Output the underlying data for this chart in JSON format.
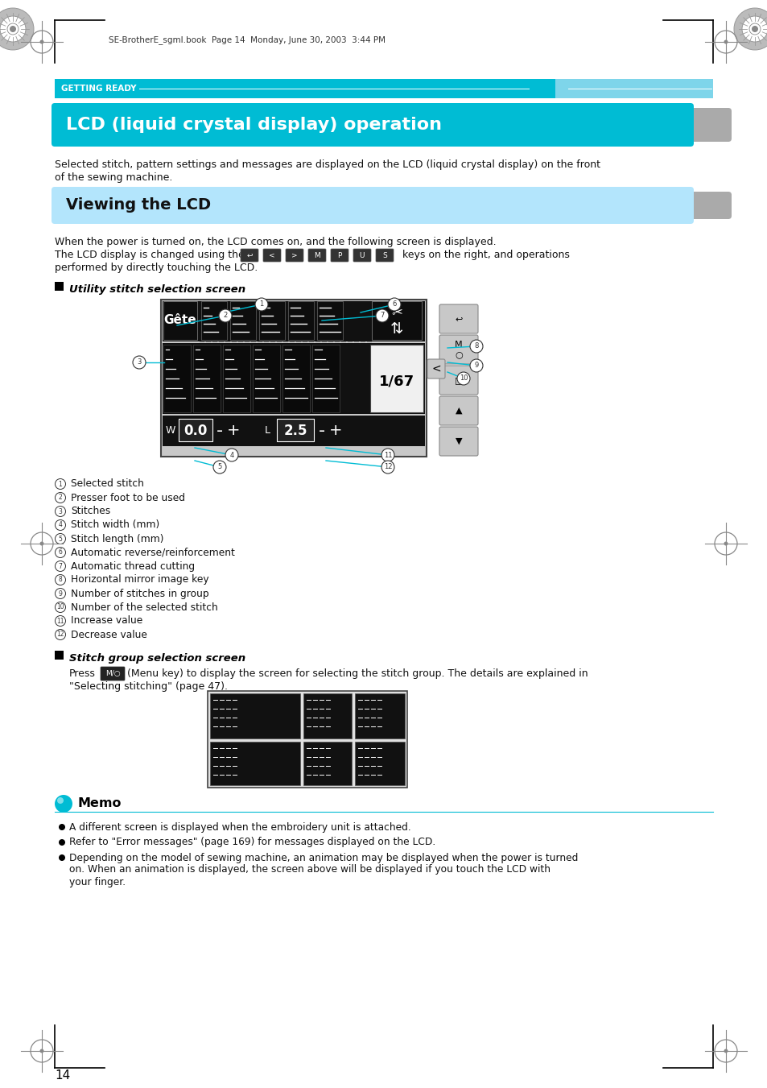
{
  "page_bg": "#ffffff",
  "header_bar_color": "#00bcd4",
  "getting_ready_text": "GETTING READY",
  "main_title": "LCD (liquid crystal display) operation",
  "subtitle_bar_color": "#b3e5fc",
  "subtitle_text": "Viewing the LCD",
  "body_text_color": "#111111",
  "callout_line_color": "#00bcd4",
  "para1a": "Selected stitch, pattern settings and messages are displayed on the LCD (liquid crystal display) on the front",
  "para1b": "of the sewing machine.",
  "para2a": "When the power is turned on, the LCD comes on, and the following screen is displayed.",
  "para2b": "The LCD display is changed using the",
  "para2c": "keys on the right, and operations",
  "para2d": "performed by directly touching the LCD.",
  "utility_title": "Utility stitch selection screen",
  "numbered_items": [
    "Selected stitch",
    "Presser foot to be used",
    "Stitches",
    "Stitch width (mm)",
    "Stitch length (mm)",
    "Automatic reverse/reinforcement",
    "Automatic thread cutting",
    "Horizontal mirror image key",
    "Number of stitches in group",
    "Number of the selected stitch",
    "Increase value",
    "Decrease value"
  ],
  "stitch_group_title": "Stitch group selection screen",
  "stitch_group_para1": "(Menu key) to display the screen for selecting the stitch group. The details are explained in",
  "stitch_group_para2": "\"Selecting stitching\" (page 47).",
  "memo_title": "Memo",
  "memo_line1": "A different screen is displayed when the embroidery unit is attached.",
  "memo_line2": "Refer to \"Error messages\" (page 169) for messages displayed on the LCD.",
  "memo_line3a": "Depending on the model of sewing machine, an animation may be displayed when the power is turned",
  "memo_line3b": "on. When an animation is displayed, the screen above will be displayed if you touch the LCD with",
  "memo_line3c": "your finger.",
  "page_number": "14",
  "file_info": "SE-BrotherE_sgml.book  Page 14  Monday, June 30, 2003  3:44 PM"
}
